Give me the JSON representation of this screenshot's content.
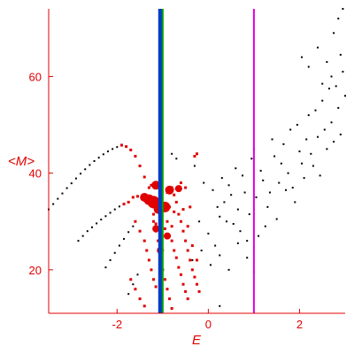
{
  "chart_data": {
    "type": "scatter",
    "title": "",
    "xlabel": "E",
    "ylabel": "<M>",
    "xlim": [
      -3.5,
      3.0
    ],
    "ylim": [
      11,
      74
    ],
    "grid": false,
    "legend": "none",
    "x_ticks": [
      -2,
      0,
      2
    ],
    "y_ticks": [
      20,
      40,
      60
    ],
    "vertical_lines": [
      {
        "x": -1.05,
        "color": "#003cc8"
      },
      {
        "x": -1.0,
        "color": "#00a000"
      },
      {
        "x": 1.0,
        "color": "#e000e0"
      }
    ],
    "series": [
      {
        "color": "#000000",
        "marker": "dot",
        "points": [
          [
            -3.5,
            32.5
          ],
          [
            -3.4,
            33.6
          ],
          [
            -3.3,
            34.7
          ],
          [
            -3.2,
            35.8
          ],
          [
            -3.1,
            36.9
          ],
          [
            -3.0,
            37.9
          ],
          [
            -2.9,
            38.9
          ],
          [
            -2.8,
            39.9
          ],
          [
            -2.7,
            40.8
          ],
          [
            -2.6,
            41.7
          ],
          [
            -2.5,
            42.5
          ],
          [
            -2.4,
            43.2
          ],
          [
            -2.3,
            43.9
          ],
          [
            -2.2,
            44.5
          ],
          [
            -2.1,
            45.0
          ],
          [
            -2.0,
            45.4
          ],
          [
            -1.9,
            45.7
          ],
          [
            -2.85,
            26.0
          ],
          [
            -2.75,
            27.0
          ],
          [
            -2.65,
            28.0
          ],
          [
            -2.55,
            28.8
          ],
          [
            -2.45,
            29.6
          ],
          [
            -2.35,
            30.4
          ],
          [
            -2.25,
            31.1
          ],
          [
            -2.15,
            31.8
          ],
          [
            -2.05,
            32.5
          ],
          [
            -1.95,
            33.1
          ],
          [
            -1.85,
            33.6
          ],
          [
            -2.25,
            20.5
          ],
          [
            -2.15,
            22.0
          ],
          [
            -2.05,
            23.5
          ],
          [
            -1.95,
            25.0
          ],
          [
            -1.85,
            26.4
          ],
          [
            -1.75,
            27.8
          ],
          [
            -1.65,
            29.0
          ],
          [
            -1.75,
            15.0
          ],
          [
            -1.65,
            17.0
          ],
          [
            -1.55,
            19.0
          ],
          [
            -0.8,
            44.0
          ],
          [
            -0.7,
            43.0
          ],
          [
            -0.3,
            41.5
          ],
          [
            -0.1,
            38.0
          ],
          [
            0.1,
            36.5
          ],
          [
            0.2,
            33.0
          ],
          [
            0.3,
            39.0
          ],
          [
            0.4,
            30.0
          ],
          [
            0.5,
            35.5
          ],
          [
            0.6,
            41.0
          ],
          [
            0.7,
            28.0
          ],
          [
            0.8,
            36.0
          ],
          [
            0.9,
            31.5
          ],
          [
            1.0,
            45.0
          ],
          [
            1.1,
            27.0
          ],
          [
            1.2,
            38.5
          ],
          [
            1.3,
            33.0
          ],
          [
            1.4,
            47.0
          ],
          [
            1.5,
            30.5
          ],
          [
            1.6,
            42.0
          ],
          [
            1.7,
            36.5
          ],
          [
            1.8,
            49.0
          ],
          [
            1.9,
            34.0
          ],
          [
            2.0,
            44.5
          ],
          [
            2.1,
            39.0
          ],
          [
            2.2,
            52.0
          ],
          [
            2.3,
            41.5
          ],
          [
            2.4,
            47.5
          ],
          [
            2.5,
            55.0
          ],
          [
            2.6,
            45.0
          ],
          [
            2.7,
            50.5
          ],
          [
            2.8,
            58.0
          ],
          [
            2.9,
            48.0
          ],
          [
            3.0,
            56.0
          ],
          [
            -0.2,
            30.0
          ],
          [
            0.0,
            27.5
          ],
          [
            0.15,
            25.0
          ],
          [
            0.25,
            31.0
          ],
          [
            0.35,
            34.0
          ],
          [
            0.45,
            37.5
          ],
          [
            0.55,
            29.5
          ],
          [
            0.65,
            32.5
          ],
          [
            0.75,
            39.5
          ],
          [
            0.85,
            26.0
          ],
          [
            0.95,
            43.0
          ],
          [
            1.05,
            35.0
          ],
          [
            1.15,
            40.5
          ],
          [
            1.25,
            29.0
          ],
          [
            1.35,
            36.0
          ],
          [
            1.45,
            43.5
          ],
          [
            1.55,
            38.0
          ],
          [
            1.65,
            46.0
          ],
          [
            1.75,
            40.0
          ],
          [
            1.85,
            37.0
          ],
          [
            1.95,
            50.0
          ],
          [
            2.05,
            42.0
          ],
          [
            2.15,
            47.0
          ],
          [
            2.25,
            44.0
          ],
          [
            2.35,
            53.0
          ],
          [
            2.45,
            39.5
          ],
          [
            2.55,
            49.0
          ],
          [
            2.65,
            57.5
          ],
          [
            2.75,
            46.5
          ],
          [
            2.85,
            53.5
          ],
          [
            2.95,
            61.0
          ],
          [
            2.05,
            64.0
          ],
          [
            2.2,
            62.0
          ],
          [
            2.4,
            66.0
          ],
          [
            2.6,
            63.0
          ],
          [
            2.75,
            69.0
          ],
          [
            2.85,
            72.0
          ],
          [
            2.95,
            74.0
          ],
          [
            2.5,
            58.5
          ],
          [
            2.7,
            60.0
          ],
          [
            2.9,
            64.5
          ],
          [
            -0.35,
            22.0
          ],
          [
            -0.15,
            24.0
          ],
          [
            0.05,
            21.0
          ],
          [
            0.25,
            23.0
          ],
          [
            0.45,
            20.0
          ],
          [
            0.65,
            25.5
          ],
          [
            0.85,
            22.5
          ],
          [
            1.0,
            19.5
          ],
          [
            0.25,
            12.5
          ]
        ]
      },
      {
        "color": "#e00000",
        "marker": "square",
        "points": [
          [
            -1.9,
            45.8
          ],
          [
            -1.8,
            45.5
          ],
          [
            -1.7,
            44.8
          ],
          [
            -1.6,
            43.5
          ],
          [
            -1.5,
            41.5
          ],
          [
            -1.4,
            39.2
          ],
          [
            -1.3,
            37.0
          ],
          [
            -1.2,
            35.0
          ],
          [
            -1.1,
            33.5
          ],
          [
            -1.85,
            33.6
          ],
          [
            -1.75,
            34.0
          ],
          [
            -1.65,
            35.0
          ],
          [
            -1.55,
            35.2
          ],
          [
            -1.45,
            35.0
          ],
          [
            -1.35,
            34.5
          ],
          [
            -1.25,
            34.0
          ],
          [
            -1.2,
            30.0
          ],
          [
            -1.15,
            28.0
          ],
          [
            -1.6,
            30.0
          ],
          [
            -1.5,
            28.0
          ],
          [
            -1.4,
            26.0
          ],
          [
            -1.35,
            24.0
          ],
          [
            -1.3,
            22.0
          ],
          [
            -1.25,
            20.0
          ],
          [
            -1.2,
            18.0
          ],
          [
            -1.15,
            16.5
          ],
          [
            -1.7,
            18.0
          ],
          [
            -1.6,
            16.0
          ],
          [
            -1.5,
            14.0
          ],
          [
            -1.4,
            12.5
          ],
          [
            -1.25,
            37.5
          ],
          [
            -1.2,
            33.0
          ],
          [
            -1.05,
            31.0
          ],
          [
            -0.9,
            30.0
          ],
          [
            -0.8,
            29.0
          ],
          [
            -0.75,
            35.5
          ],
          [
            -0.7,
            34.0
          ],
          [
            -0.65,
            31.5
          ],
          [
            -0.6,
            30.0
          ],
          [
            -0.55,
            28.0
          ],
          [
            -0.5,
            26.0
          ],
          [
            -0.45,
            24.0
          ],
          [
            -0.4,
            22.0
          ],
          [
            -0.35,
            20.0
          ],
          [
            -0.3,
            18.5
          ],
          [
            -0.25,
            17.0
          ],
          [
            -0.2,
            15.5
          ],
          [
            -0.95,
            28.5
          ],
          [
            -0.85,
            27.0
          ],
          [
            -0.8,
            26.0
          ],
          [
            -0.75,
            24.0
          ],
          [
            -0.7,
            22.5
          ],
          [
            -0.65,
            20.5
          ],
          [
            -0.6,
            19.0
          ],
          [
            -0.55,
            17.0
          ],
          [
            -0.5,
            15.5
          ],
          [
            -0.45,
            14.0
          ],
          [
            -0.9,
            36.0
          ],
          [
            -0.85,
            33.0
          ],
          [
            -0.8,
            37.0
          ],
          [
            -0.75,
            32.0
          ],
          [
            -0.7,
            36.8
          ],
          [
            -0.55,
            32.5
          ],
          [
            -0.5,
            37.0
          ],
          [
            -0.45,
            29.0
          ],
          [
            -0.4,
            33.0
          ],
          [
            -1.1,
            26.0
          ],
          [
            -1.05,
            23.0
          ],
          [
            -1.0,
            20.0
          ],
          [
            -0.95,
            18.0
          ],
          [
            -0.9,
            16.0
          ],
          [
            -0.85,
            14.0
          ],
          [
            -0.8,
            12.0
          ],
          [
            -1.2,
            31.5
          ],
          [
            -1.15,
            29.5
          ],
          [
            -0.3,
            43.5
          ],
          [
            -0.25,
            44.0
          ],
          [
            -0.6,
            38.0
          ],
          [
            -0.35,
            25.0
          ],
          [
            -0.25,
            22.0
          ]
        ]
      }
    ],
    "big_markers": [
      {
        "x": -1.4,
        "y": 35.0,
        "size": 5
      },
      {
        "x": -1.3,
        "y": 34.5,
        "size": 6
      },
      {
        "x": -1.2,
        "y": 34.0,
        "size": 7
      },
      {
        "x": -1.15,
        "y": 37.5,
        "size": 5
      },
      {
        "x": -1.1,
        "y": 32.5,
        "size": 5
      },
      {
        "x": -0.95,
        "y": 33.0,
        "size": 6
      },
      {
        "x": -0.85,
        "y": 36.5,
        "size": 5
      },
      {
        "x": -0.65,
        "y": 36.8,
        "size": 4
      },
      {
        "x": -1.15,
        "y": 28.5,
        "size": 4
      },
      {
        "x": -0.9,
        "y": 27.0,
        "size": 4
      },
      {
        "x": -1.05,
        "y": 24.0,
        "size": 4
      }
    ]
  }
}
